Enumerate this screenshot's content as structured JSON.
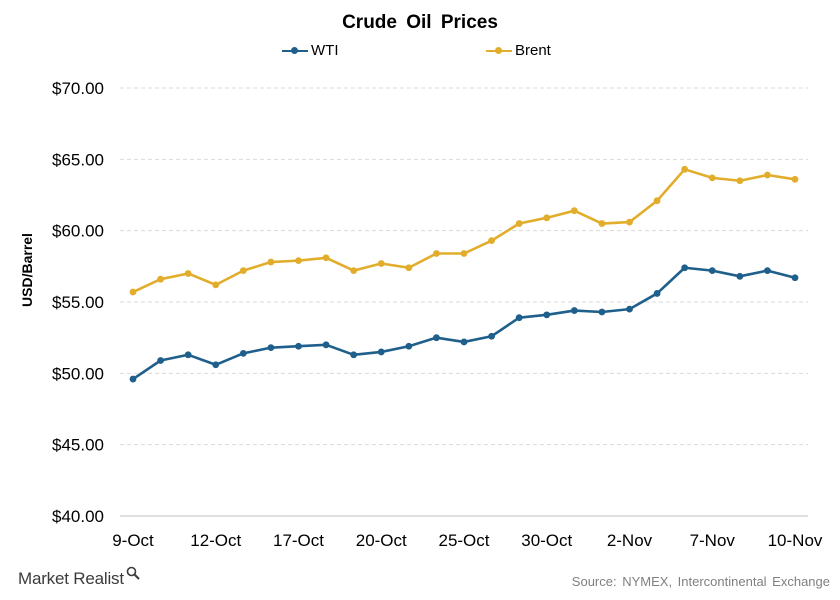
{
  "chart_data": {
    "type": "line",
    "title": "Crude Oil Prices",
    "ylabel": "USD/Barrel",
    "xlabel": "",
    "ylim": [
      40,
      70
    ],
    "y_ticks": [
      "$40.00",
      "$45.00",
      "$50.00",
      "$55.00",
      "$60.00",
      "$65.00",
      "$70.00"
    ],
    "y_tick_values": [
      40,
      45,
      50,
      55,
      60,
      65,
      70
    ],
    "x_tick_labels": [
      "9-Oct",
      "12-Oct",
      "17-Oct",
      "20-Oct",
      "25-Oct",
      "30-Oct",
      "2-Nov",
      "7-Nov",
      "10-Nov"
    ],
    "x": [
      "9-Oct",
      "10-Oct",
      "11-Oct",
      "12-Oct",
      "13-Oct",
      "16-Oct",
      "17-Oct",
      "18-Oct",
      "19-Oct",
      "20-Oct",
      "23-Oct",
      "24-Oct",
      "25-Oct",
      "26-Oct",
      "27-Oct",
      "30-Oct",
      "31-Oct",
      "1-Nov",
      "2-Nov",
      "3-Nov",
      "6-Nov",
      "7-Nov",
      "8-Nov",
      "9-Nov",
      "10-Nov"
    ],
    "grid": true,
    "legend_position": "top",
    "series": [
      {
        "name": "WTI",
        "color": "#1f5f8b",
        "values": [
          49.6,
          50.9,
          51.3,
          50.6,
          51.4,
          51.8,
          51.9,
          52.0,
          51.3,
          51.5,
          51.9,
          52.5,
          52.2,
          52.6,
          53.9,
          54.1,
          54.4,
          54.3,
          54.5,
          55.6,
          57.4,
          57.2,
          56.8,
          57.2,
          56.7
        ]
      },
      {
        "name": "Brent",
        "color": "#e2ad2b",
        "values": [
          55.7,
          56.6,
          57.0,
          56.2,
          57.2,
          57.8,
          57.9,
          58.1,
          57.2,
          57.7,
          57.4,
          58.4,
          58.4,
          59.3,
          60.5,
          60.9,
          61.4,
          60.5,
          60.6,
          62.1,
          64.3,
          63.7,
          63.5,
          63.9,
          63.6
        ]
      }
    ]
  },
  "footer": {
    "source": "Source: NYMEX, Intercontinental Exchange",
    "brand": "Market Realist"
  }
}
